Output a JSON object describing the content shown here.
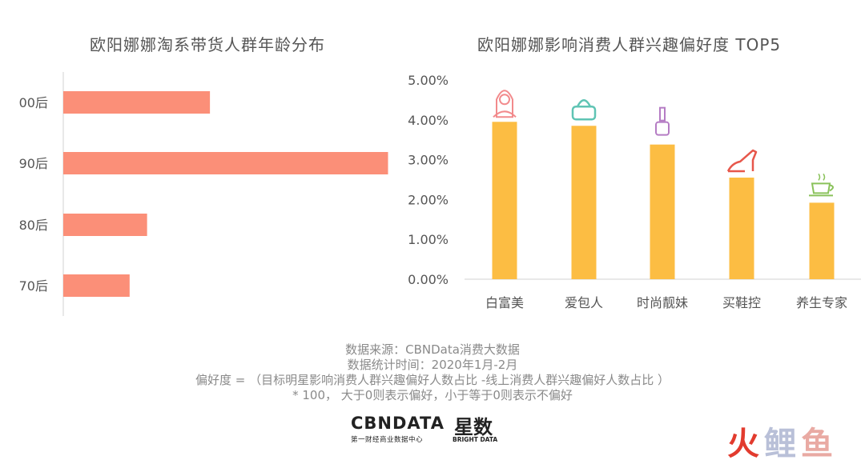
{
  "chart_data": [
    {
      "type": "bar",
      "orientation": "horizontal",
      "title": "欧阳娜娜淘系带货人群年龄分布",
      "categories": [
        "00后",
        "90后",
        "80后",
        "70后"
      ],
      "values": [
        0.42,
        0.93,
        0.24,
        0.19
      ],
      "color": "#fb8f78",
      "grid": false
    },
    {
      "type": "bar",
      "title": "欧阳娜娜影响消费人群兴趣偏好度 TOP5",
      "categories": [
        "白富美",
        "爱包人",
        "时尚靓妹",
        "买鞋控",
        "养生专家"
      ],
      "values": [
        3.95,
        3.85,
        3.38,
        2.55,
        1.92
      ],
      "icons": [
        "woman-icon",
        "handbag-icon",
        "nail-polish-icon",
        "high-heel-icon",
        "teacup-icon"
      ],
      "yticks": [
        "0.00%",
        "1.00%",
        "2.00%",
        "3.00%",
        "4.00%",
        "5.00%"
      ],
      "ylim": [
        0,
        5
      ],
      "color": "#fcbd43",
      "grid": false
    }
  ],
  "notes": [
    "数据来源：CBNData消费大数据",
    "数据统计时间：2020年1月-2月",
    "偏好度 = （目标明星影响消费人群兴趣偏好人数占比 -线上消费人群兴趣偏好人数占比 ）",
    "* 100， 大于0则表示偏好，小于等于0则表示不偏好"
  ],
  "logos": {
    "cbn": "CBNDATA",
    "cbn_sub": "第一财经商业数据中心",
    "star": "星数",
    "star_sub": "BRIGHT DATA",
    "huo": "火",
    "li": "鲤",
    "yu": "鱼"
  },
  "colors": {
    "left_bar": "#fb8f78",
    "right_bar": "#fcbd43",
    "axis": "#d0d0d0",
    "text": "#555555"
  }
}
